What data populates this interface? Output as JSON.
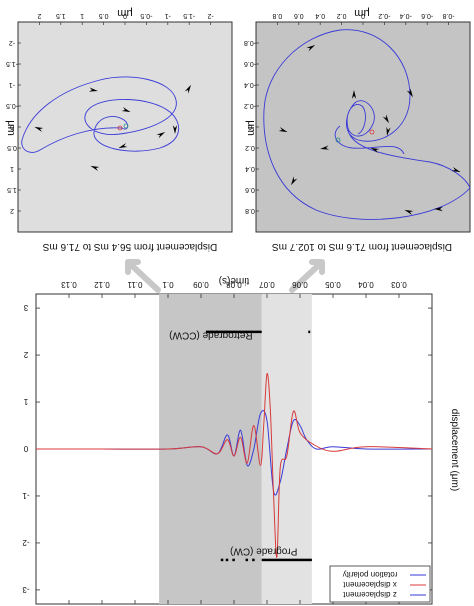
{
  "colors": {
    "panel_left_bg": "#dedede",
    "panel_right_bg": "#c4c4c4",
    "band_light": "#e2e2e2",
    "band_dark": "#c6c6c6",
    "blue": "#3a3ad8",
    "red": "#d83a3a",
    "arrow_gray": "#c8c8c8"
  },
  "chart_data": [
    {
      "type": "line",
      "id": "main",
      "xlabel": "time(s)",
      "ylabel": "displacement (μm)",
      "xlim": [
        0.02,
        0.14
      ],
      "ylim": [
        -3.3,
        3.3
      ],
      "x_ticks": [
        "0.03",
        "0.04",
        "0.05",
        "0.06",
        "0.07",
        "0.08",
        "0.09",
        "0.1",
        "0.11",
        "0.12",
        "0.13"
      ],
      "y_ticks": [
        "-3",
        "-2",
        "-1",
        "0",
        "1",
        "2",
        "3"
      ],
      "bands": [
        {
          "from": 0.0564,
          "to": 0.0716
        },
        {
          "from": 0.0716,
          "to": 0.1027
        }
      ],
      "annotations": [
        {
          "label": "Prograde (CW)",
          "x": 0.071,
          "y": -2.25
        },
        {
          "label": "Retrograde (CCW)",
          "x": 0.087,
          "y": 2.35
        }
      ],
      "series": [
        {
          "name": "z displacement",
          "x": [
            0.02,
            0.04,
            0.05,
            0.055,
            0.058,
            0.06,
            0.062,
            0.064,
            0.066,
            0.068,
            0.07,
            0.072,
            0.074,
            0.076,
            0.078,
            0.08,
            0.082,
            0.085,
            0.09,
            0.1,
            0.12,
            0.14
          ],
          "y": [
            0,
            0,
            0.05,
            0,
            0.2,
            0.5,
            0.6,
            0,
            -0.7,
            -0.9,
            0.6,
            0.75,
            0,
            -0.35,
            0.4,
            -0.15,
            0.3,
            -0.1,
            0.05,
            0,
            0,
            0
          ]
        },
        {
          "name": "x displacement",
          "x": [
            0.02,
            0.04,
            0.05,
            0.056,
            0.06,
            0.062,
            0.064,
            0.066,
            0.067,
            0.068,
            0.069,
            0.07,
            0.071,
            0.072,
            0.074,
            0.076,
            0.078,
            0.08,
            0.082,
            0.085,
            0.09,
            0.1,
            0.12,
            0.14
          ],
          "y": [
            0,
            0.05,
            -0.05,
            0.1,
            0.35,
            0.8,
            -0.15,
            -0.4,
            -2.3,
            -1.0,
            0.85,
            1.6,
            0.5,
            -0.35,
            0.5,
            -0.3,
            0.25,
            -0.15,
            0.2,
            -0.1,
            0.05,
            0,
            0,
            0
          ]
        },
        {
          "name": "rotation polarity",
          "x": [
            0.02,
            0.14
          ],
          "y": [
            0,
            0
          ]
        }
      ]
    },
    {
      "type": "line",
      "id": "hodogram-left",
      "title": "Displacement from 56.4 mS to 71.6 mS",
      "xlabel": "μm",
      "ylabel": "μm",
      "x_ticks": [
        "-2",
        "-1.5",
        "-1",
        "-0.5",
        "0",
        "0.5",
        "1",
        "1.5",
        "2"
      ],
      "y_ticks": [
        "-2",
        "-1.5",
        "-1",
        "-0.5",
        "0",
        "0.5",
        "1",
        "1.5",
        "2"
      ]
    },
    {
      "type": "line",
      "id": "hodogram-right",
      "title": "Displacement from 71.6 mS to 102.7 mS",
      "xlabel": "μm",
      "ylabel": "μm",
      "x_ticks": [
        "-0.8",
        "-0.6",
        "-0.4",
        "-0.2",
        "0",
        "0.2",
        "0.4",
        "0.6",
        "0.8"
      ],
      "y_ticks": [
        "-0.8",
        "-0.6",
        "-0.4",
        "-0.2",
        "0",
        "0.2",
        "0.4",
        "0.6",
        "0.8"
      ]
    }
  ]
}
